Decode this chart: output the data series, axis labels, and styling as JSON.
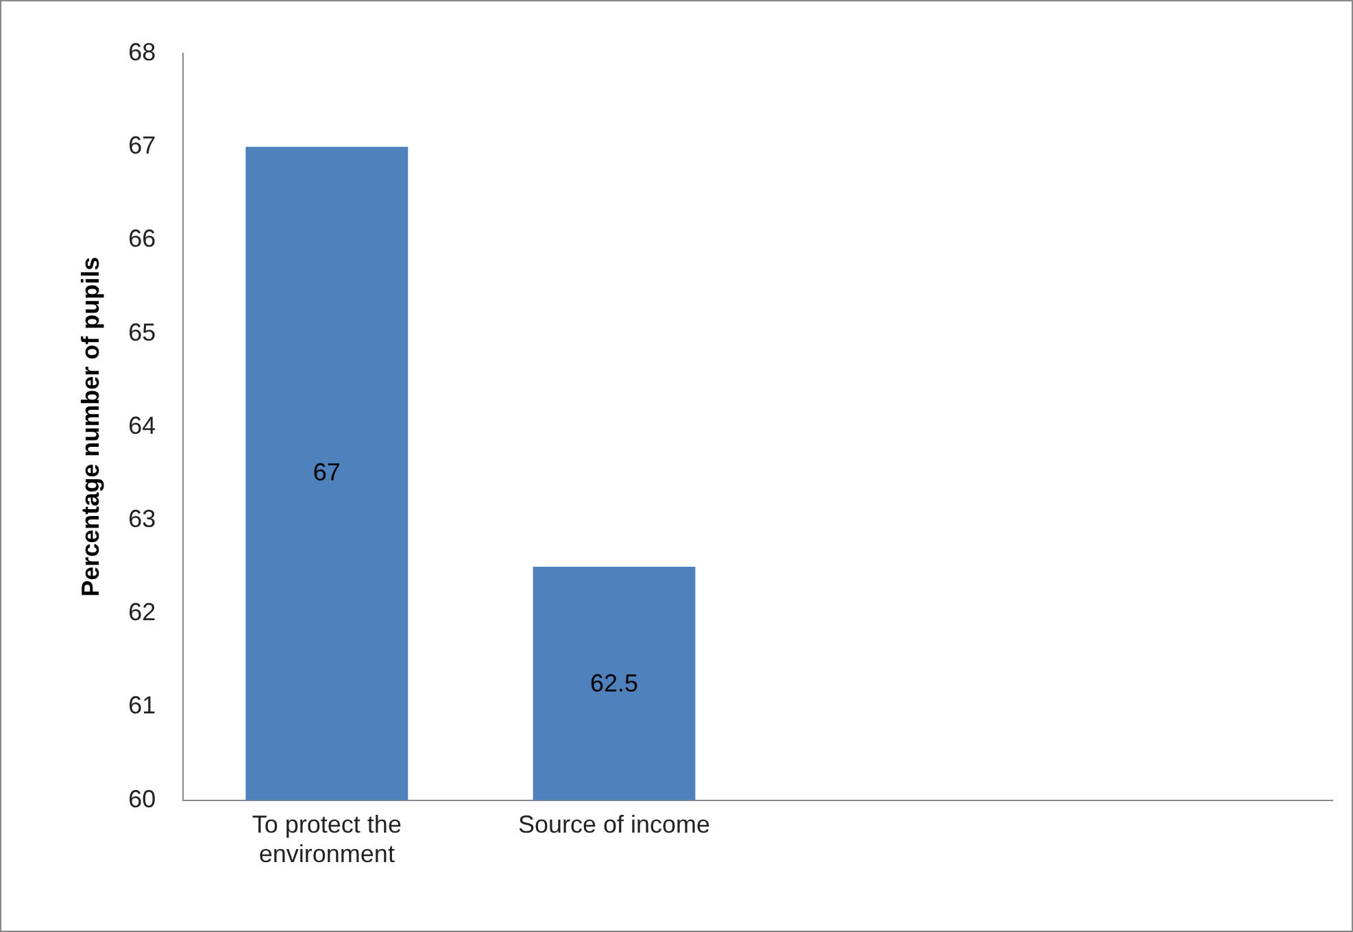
{
  "chart_data": {
    "type": "bar",
    "ylabel": "Percentage number of pupils",
    "categories": [
      "To protect the environment",
      "Source of income",
      null,
      null
    ],
    "values": [
      67,
      62.5,
      null,
      null
    ],
    "color": "#4f81bd",
    "ylim": [
      60,
      68
    ],
    "yticks": [
      60,
      61,
      62,
      63,
      64,
      65,
      66,
      67,
      68
    ],
    "grid": false,
    "legend": false,
    "data_labels": true
  }
}
